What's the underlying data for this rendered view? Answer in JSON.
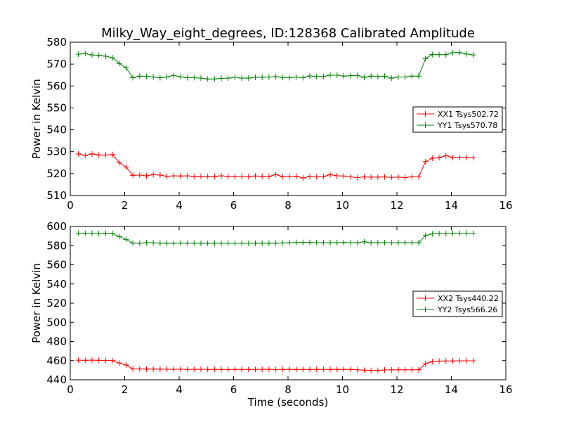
{
  "chart_data": [
    {
      "type": "line",
      "title": "Milky_Way_eight_degrees, ID:128368 Calibrated Amplitude",
      "xlabel": "",
      "ylabel": "Power in Kelvin",
      "xlim": [
        0,
        16
      ],
      "ylim": [
        510,
        580
      ],
      "xticks": [
        0,
        2,
        4,
        6,
        8,
        10,
        12,
        14,
        16
      ],
      "yticks": [
        510,
        520,
        530,
        540,
        550,
        560,
        570,
        580
      ],
      "legend_position": "center-right",
      "marker": "plus",
      "x": [
        0.3,
        0.55,
        0.8,
        1.05,
        1.3,
        1.55,
        1.8,
        2.05,
        2.3,
        2.55,
        2.8,
        3.05,
        3.3,
        3.55,
        3.8,
        4.05,
        4.3,
        4.55,
        4.8,
        5.05,
        5.3,
        5.55,
        5.8,
        6.05,
        6.3,
        6.55,
        6.8,
        7.05,
        7.3,
        7.55,
        7.8,
        8.05,
        8.3,
        8.55,
        8.8,
        9.05,
        9.3,
        9.55,
        9.8,
        10.05,
        10.3,
        10.55,
        10.8,
        11.05,
        11.3,
        11.55,
        11.8,
        12.05,
        12.3,
        12.55,
        12.8,
        13.05,
        13.3,
        13.55,
        13.8,
        14.05,
        14.3,
        14.55,
        14.8
      ],
      "series": [
        {
          "name": "XX1 Tsys502.72",
          "color": "#ff0000",
          "values": [
            529,
            528.3,
            529,
            528.5,
            528.5,
            528.7,
            525,
            523,
            519.2,
            519.3,
            519,
            519.5,
            519.3,
            518.8,
            519,
            518.9,
            519,
            518.7,
            518.8,
            518.8,
            518.7,
            519,
            518.7,
            518.6,
            518.7,
            518.6,
            518.9,
            518.8,
            518.7,
            519.6,
            518.6,
            518.7,
            518.8,
            518,
            518.7,
            518.5,
            518.7,
            519.5,
            519,
            518.9,
            518.5,
            518.2,
            518.5,
            518.4,
            518.4,
            518.5,
            518.3,
            518.4,
            518.2,
            518.6,
            518.5,
            525.5,
            527,
            527.3,
            528.2,
            527.3,
            527.3,
            527.3,
            527.3
          ]
        },
        {
          "name": "YY1 Tsys570.78",
          "color": "#008000",
          "values": [
            574.5,
            574.8,
            574.2,
            574,
            573.6,
            572.9,
            570.3,
            568.3,
            563.8,
            564.5,
            564.4,
            564.1,
            563.8,
            564.1,
            564.8,
            564.2,
            563.8,
            563.8,
            563.6,
            563.2,
            563.2,
            563.5,
            563.6,
            564,
            563.6,
            563.6,
            564,
            564,
            564.1,
            564.3,
            563.9,
            563.8,
            564.1,
            563.8,
            564.6,
            564.3,
            564.3,
            565,
            564.9,
            564.5,
            564.7,
            564.8,
            563.9,
            564.5,
            564.3,
            564.5,
            563.6,
            564.1,
            564.1,
            564.5,
            564.5,
            572.5,
            574.4,
            574.3,
            574.3,
            575.2,
            575.3,
            574.6,
            574.2
          ]
        }
      ]
    },
    {
      "type": "line",
      "title": "",
      "xlabel": "Time (seconds)",
      "ylabel": "Power in Kelvin",
      "xlim": [
        0,
        16
      ],
      "ylim": [
        440,
        600
      ],
      "xticks": [
        0,
        2,
        4,
        6,
        8,
        10,
        12,
        14,
        16
      ],
      "yticks": [
        440,
        460,
        480,
        500,
        520,
        540,
        560,
        580,
        600
      ],
      "legend_position": "center-right",
      "marker": "plus",
      "x": [
        0.3,
        0.55,
        0.8,
        1.05,
        1.3,
        1.55,
        1.8,
        2.05,
        2.3,
        2.55,
        2.8,
        3.05,
        3.3,
        3.55,
        3.8,
        4.05,
        4.3,
        4.55,
        4.8,
        5.05,
        5.3,
        5.55,
        5.8,
        6.05,
        6.3,
        6.55,
        6.8,
        7.05,
        7.3,
        7.55,
        7.8,
        8.05,
        8.3,
        8.55,
        8.8,
        9.05,
        9.3,
        9.55,
        9.8,
        10.05,
        10.3,
        10.55,
        10.8,
        11.05,
        11.3,
        11.55,
        11.8,
        12.05,
        12.3,
        12.55,
        12.8,
        13.05,
        13.3,
        13.55,
        13.8,
        14.05,
        14.3,
        14.55,
        14.8
      ],
      "series": [
        {
          "name": "XX2 Tsys440.22",
          "color": "#ff0000",
          "values": [
            460.5,
            460.3,
            460.5,
            460.3,
            460.2,
            460,
            457.5,
            455.5,
            451.3,
            451.3,
            451.2,
            451.2,
            451.1,
            451,
            450.9,
            451,
            450.8,
            450.9,
            451,
            450.8,
            450.8,
            450.8,
            450.7,
            450.9,
            450.8,
            450.8,
            450.8,
            450.9,
            450.9,
            450.7,
            450.8,
            450.9,
            450.8,
            450.8,
            450.8,
            450.8,
            450.9,
            450.8,
            450.8,
            450.9,
            450.8,
            450.5,
            450,
            449.8,
            449.8,
            450.3,
            450.4,
            450.5,
            450.4,
            450.4,
            450.5,
            456.8,
            459,
            459.5,
            459.6,
            459.6,
            459.8,
            459.8,
            459.8
          ]
        },
        {
          "name": "YY2 Tsys566.26",
          "color": "#008000",
          "values": [
            593,
            592.9,
            593,
            592.6,
            592.9,
            592.5,
            589.5,
            586.5,
            582.6,
            582.6,
            583,
            582.9,
            582.7,
            582.5,
            582.5,
            582.7,
            582.6,
            582.6,
            582.5,
            582.4,
            582.5,
            582.4,
            582.4,
            582.4,
            582.4,
            582.4,
            582.5,
            582.5,
            582.5,
            582.6,
            582.8,
            583,
            583.3,
            583.3,
            583.3,
            583.1,
            583,
            583,
            583,
            583.3,
            583.1,
            583,
            584,
            583,
            583,
            583,
            583,
            583,
            583,
            583,
            583,
            590.5,
            592.3,
            592.5,
            592.6,
            593,
            593,
            593,
            593
          ]
        }
      ]
    }
  ]
}
